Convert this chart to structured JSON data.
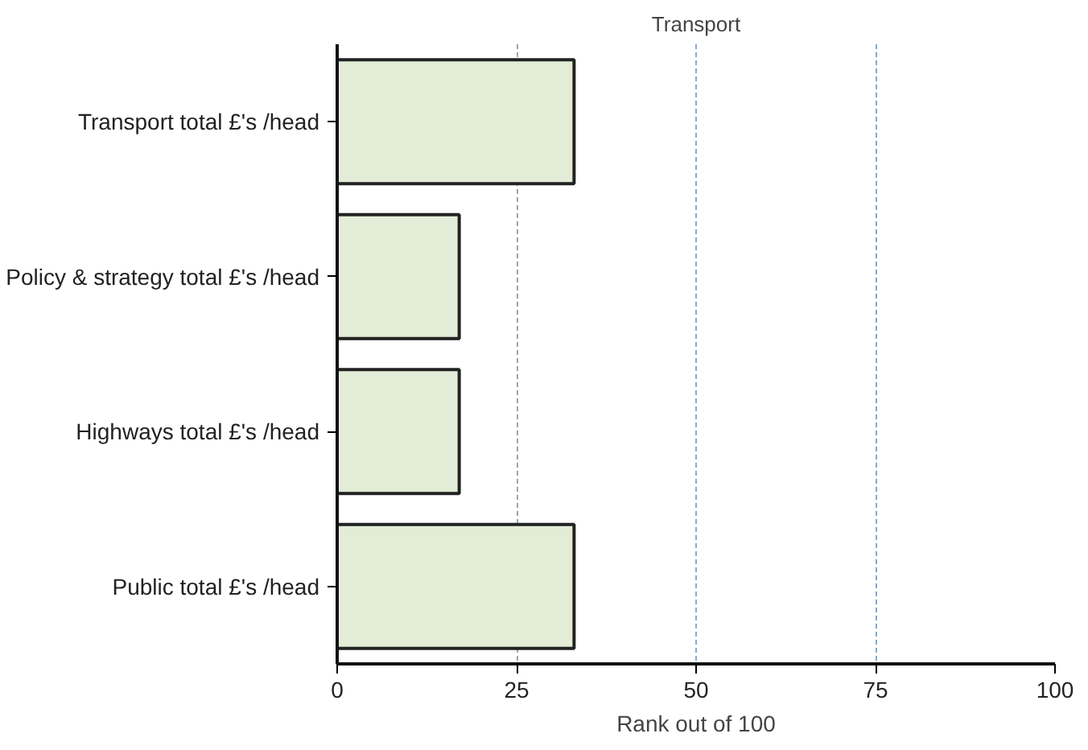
{
  "chart_data": {
    "type": "bar",
    "orientation": "horizontal",
    "title": "Transport",
    "xlabel": "Rank out of 100",
    "categories": [
      "Transport total £'s /head",
      "Policy & strategy total £'s /head",
      "Highways total £'s /head",
      "Public total £'s /head"
    ],
    "values": [
      33,
      17,
      17,
      33
    ],
    "color": "#e2ecd6",
    "xlim": [
      0,
      100
    ],
    "xticks": [
      0,
      25,
      50,
      75,
      100
    ],
    "grid": "x"
  }
}
